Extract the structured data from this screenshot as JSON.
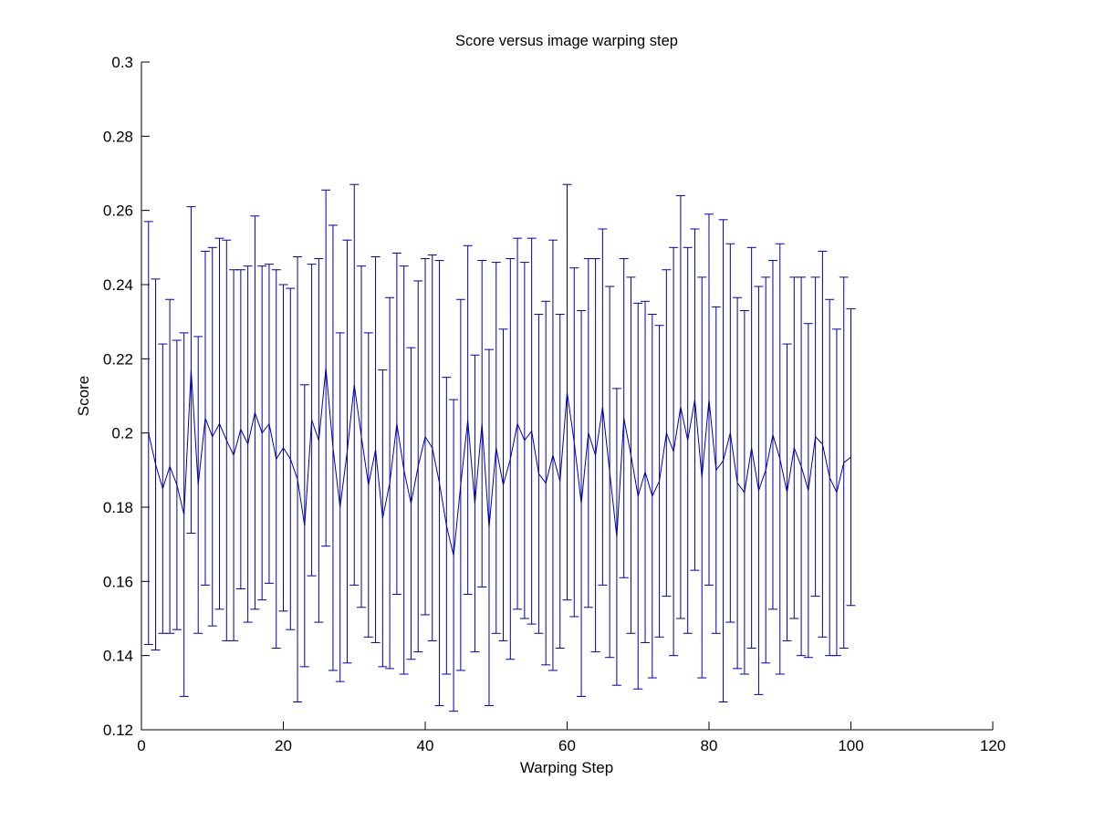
{
  "figure": {
    "title": "Score versus image warping step",
    "background": "#FFFFFF"
  },
  "chart_data": {
    "type": "line",
    "error_bars": true,
    "title": "Score versus image warping step",
    "xlabel": "Warping Step",
    "ylabel": "Score",
    "xlim": [
      0,
      120
    ],
    "ylim": [
      0.12,
      0.3
    ],
    "xticks": [
      0,
      20,
      40,
      60,
      80,
      100,
      120
    ],
    "yticks": [
      0.12,
      0.14,
      0.16,
      0.18,
      0.2,
      0.22,
      0.24,
      0.26,
      0.28,
      0.3
    ],
    "grid": false,
    "legend": "none",
    "line_color": "#0000AA",
    "axis_color": "#000000",
    "x": [
      1,
      2,
      3,
      4,
      5,
      6,
      7,
      8,
      9,
      10,
      11,
      12,
      13,
      14,
      15,
      16,
      17,
      18,
      19,
      20,
      21,
      22,
      23,
      24,
      25,
      26,
      27,
      28,
      29,
      30,
      31,
      32,
      33,
      34,
      35,
      36,
      37,
      38,
      39,
      40,
      41,
      42,
      43,
      44,
      45,
      46,
      47,
      48,
      49,
      50,
      51,
      52,
      53,
      54,
      55,
      56,
      57,
      58,
      59,
      60,
      61,
      62,
      63,
      64,
      65,
      66,
      67,
      68,
      69,
      70,
      71,
      72,
      73,
      74,
      75,
      76,
      77,
      78,
      79,
      80,
      81,
      82,
      83,
      84,
      85,
      86,
      87,
      88,
      89,
      90,
      91,
      92,
      93,
      94,
      95,
      96,
      97,
      98,
      99,
      100
    ],
    "mean": [
      0.2,
      0.1915,
      0.185,
      0.191,
      0.186,
      0.178,
      0.217,
      0.186,
      0.204,
      0.199,
      0.2025,
      0.198,
      0.194,
      0.201,
      0.197,
      0.2055,
      0.2,
      0.2025,
      0.193,
      0.196,
      0.193,
      0.1875,
      0.175,
      0.2035,
      0.198,
      0.2175,
      0.196,
      0.18,
      0.195,
      0.213,
      0.199,
      0.186,
      0.1955,
      0.177,
      0.1865,
      0.2025,
      0.19,
      0.181,
      0.191,
      0.199,
      0.196,
      0.1865,
      0.175,
      0.167,
      0.186,
      0.2035,
      0.181,
      0.2025,
      0.1745,
      0.196,
      0.186,
      0.193,
      0.2025,
      0.198,
      0.2005,
      0.189,
      0.1865,
      0.194,
      0.187,
      0.211,
      0.1975,
      0.181,
      0.2,
      0.194,
      0.207,
      0.1895,
      0.172,
      0.204,
      0.194,
      0.183,
      0.1895,
      0.183,
      0.187,
      0.2,
      0.195,
      0.207,
      0.198,
      0.209,
      0.188,
      0.209,
      0.19,
      0.1925,
      0.2,
      0.1865,
      0.184,
      0.196,
      0.1845,
      0.19,
      0.1995,
      0.193,
      0.184,
      0.196,
      0.191,
      0.1845,
      0.199,
      0.197,
      0.188,
      0.184,
      0.192,
      0.1935
    ],
    "err": [
      0.057,
      0.05,
      0.039,
      0.045,
      0.039,
      0.049,
      0.044,
      0.04,
      0.045,
      0.051,
      0.05,
      0.054,
      0.05,
      0.043,
      0.048,
      0.053,
      0.045,
      0.043,
      0.051,
      0.044,
      0.046,
      0.06,
      0.038,
      0.042,
      0.049,
      0.048,
      0.06,
      0.047,
      0.057,
      0.054,
      0.046,
      0.041,
      0.052,
      0.04,
      0.05,
      0.046,
      0.055,
      0.042,
      0.05,
      0.048,
      0.052,
      0.06,
      0.04,
      0.042,
      0.05,
      0.047,
      0.04,
      0.044,
      0.048,
      0.05,
      0.042,
      0.054,
      0.05,
      0.048,
      0.052,
      0.043,
      0.049,
      0.058,
      0.045,
      0.056,
      0.047,
      0.052,
      0.047,
      0.053,
      0.048,
      0.05,
      0.04,
      0.043,
      0.048,
      0.052,
      0.046,
      0.049,
      0.042,
      0.044,
      0.055,
      0.057,
      0.052,
      0.046,
      0.054,
      0.05,
      0.044,
      0.065,
      0.051,
      0.05,
      0.049,
      0.054,
      0.055,
      0.052,
      0.047,
      0.058,
      0.04,
      0.046,
      0.051,
      0.045,
      0.043,
      0.052,
      0.048,
      0.044,
      0.05,
      0.04
    ]
  }
}
